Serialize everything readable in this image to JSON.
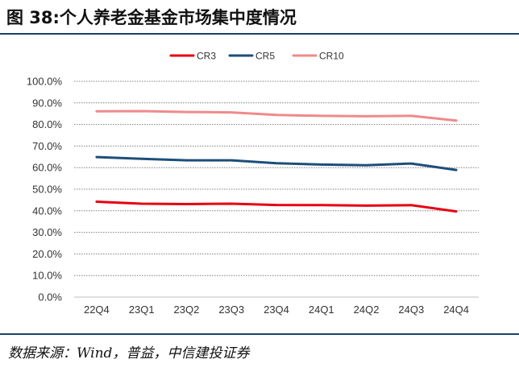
{
  "figure": {
    "title": "图 38:个人养老金基金市场集中度情况",
    "source": "数据来源：Wind，普益，中信建投证券"
  },
  "chart_data": {
    "type": "line",
    "categories": [
      "22Q4",
      "23Q1",
      "23Q2",
      "23Q3",
      "23Q4",
      "24Q1",
      "24Q2",
      "24Q3",
      "24Q4"
    ],
    "ylim": [
      0,
      100
    ],
    "yticks": [
      "0.0%",
      "10.0%",
      "20.0%",
      "30.0%",
      "40.0%",
      "50.0%",
      "60.0%",
      "70.0%",
      "80.0%",
      "90.0%",
      "100.0%"
    ],
    "grid": true,
    "legend_position": "top-center",
    "series": [
      {
        "name": "CR3",
        "color": "#e60012",
        "values": [
          44.2,
          43.3,
          43.1,
          43.3,
          42.7,
          42.6,
          42.4,
          42.6,
          39.7
        ]
      },
      {
        "name": "CR5",
        "color": "#1d4e79",
        "values": [
          64.9,
          64.1,
          63.4,
          63.4,
          62.0,
          61.4,
          61.1,
          61.9,
          58.9
        ]
      },
      {
        "name": "CR10",
        "color": "#f08a8a",
        "values": [
          86.1,
          86.2,
          85.8,
          85.6,
          84.4,
          84.0,
          83.8,
          84.0,
          81.8
        ]
      }
    ]
  }
}
